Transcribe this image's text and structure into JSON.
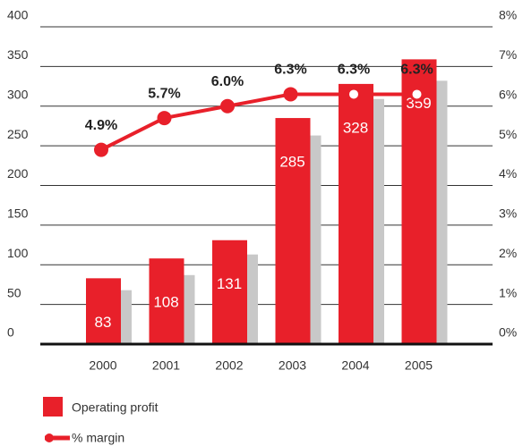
{
  "chart_data": {
    "type": "bar",
    "categories": [
      "2000",
      "2001",
      "2002",
      "2003",
      "2004",
      "2005"
    ],
    "series": [
      {
        "name": "Operating profit",
        "color": "#e8202a",
        "values": [
          83,
          108,
          131,
          285,
          328,
          359
        ]
      },
      {
        "color": "#c8c8c8",
        "values": [
          68,
          87,
          113,
          263,
          309,
          332
        ]
      },
      {
        "name": "% margin",
        "color": "#e8202a",
        "axis": "y2",
        "type": "line",
        "values": [
          4.9,
          5.7,
          6.0,
          6.3,
          6.3,
          6.3
        ],
        "value_labels": [
          "4.9%",
          "5.7%",
          "6.0%",
          "6.3%",
          "6.3%",
          "6.3%"
        ]
      }
    ],
    "ylim": [
      0,
      400
    ],
    "yticks": [
      0,
      50,
      100,
      150,
      200,
      250,
      300,
      350,
      400
    ],
    "y2lim": [
      0,
      8
    ],
    "y2ticks": [
      {
        "value": 0,
        "label": "0%"
      },
      {
        "value": 1,
        "label": "1%"
      },
      {
        "value": 2,
        "label": "2%"
      },
      {
        "value": 3,
        "label": "3%"
      },
      {
        "value": 4,
        "label": "4%"
      },
      {
        "value": 5,
        "label": "5%"
      },
      {
        "value": 6,
        "label": "6%"
      },
      {
        "value": 7,
        "label": "7%"
      },
      {
        "value": 8,
        "label": "8%"
      }
    ],
    "grid": true
  }
}
